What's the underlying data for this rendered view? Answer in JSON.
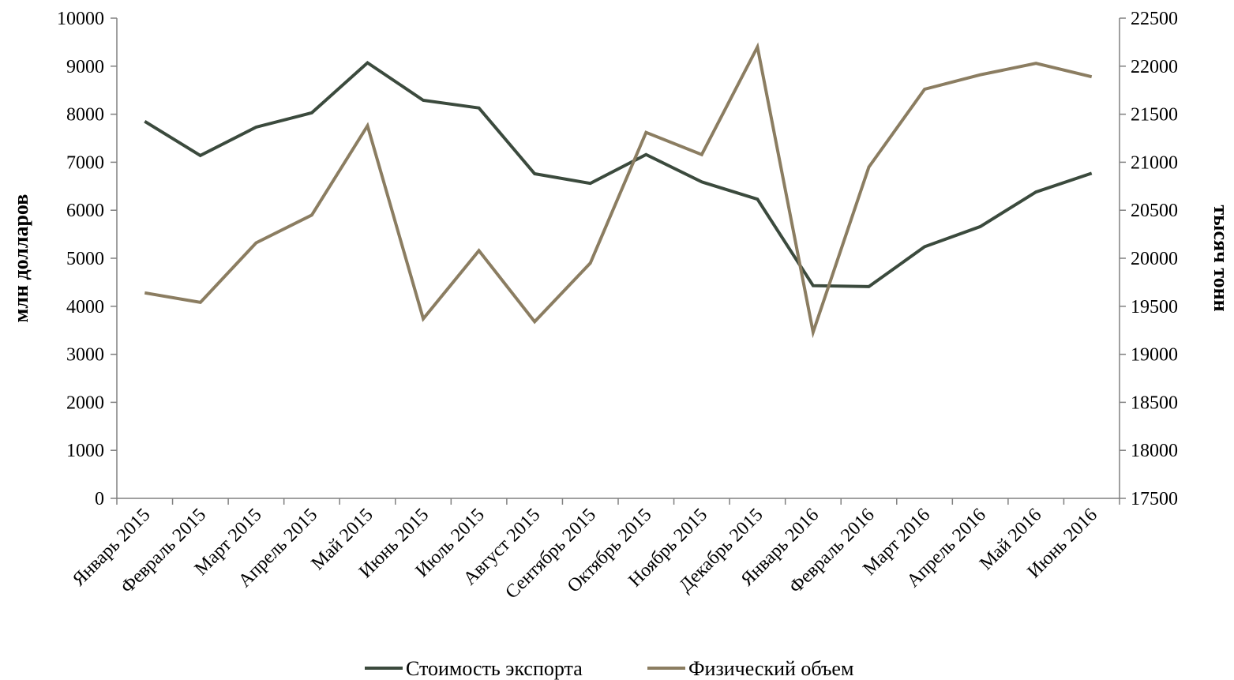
{
  "chart_data": {
    "type": "line",
    "categories": [
      "Январь 2015",
      "Февраль 2015",
      "Март 2015",
      "Апрель 2015",
      "Май 2015",
      "Июнь 2015",
      "Июль 2015",
      "Август 2015",
      "Сентябрь 2015",
      "Октябрь 2015",
      "Ноябрь 2015",
      "Декабрь 2015",
      "Январь 2016",
      "Февраль 2016",
      "Март 2016",
      "Апрель 2016",
      "Май 2016",
      "Июнь 2016"
    ],
    "series": [
      {
        "name": "Стоимость экспорта",
        "axis": "left",
        "color": "#3b4a3d",
        "values": [
          7850,
          7140,
          7730,
          8030,
          9070,
          8290,
          8130,
          6760,
          6560,
          7160,
          6590,
          6230,
          4430,
          4410,
          5240,
          5660,
          6380,
          6770
        ]
      },
      {
        "name": "Физический объем",
        "axis": "right",
        "color": "#8b7d61",
        "values": [
          19640,
          19540,
          20160,
          20450,
          21380,
          19370,
          20080,
          19340,
          19950,
          21310,
          21080,
          22200,
          19230,
          20950,
          21760,
          21910,
          22030,
          21890
        ]
      }
    ],
    "y_left": {
      "label": "млн долларов",
      "min": 0,
      "max": 10000,
      "step": 1000
    },
    "y_right": {
      "label": "тысяч тонн",
      "min": 17500,
      "max": 22500,
      "step": 500
    },
    "legend_position": "bottom",
    "grid": false
  }
}
